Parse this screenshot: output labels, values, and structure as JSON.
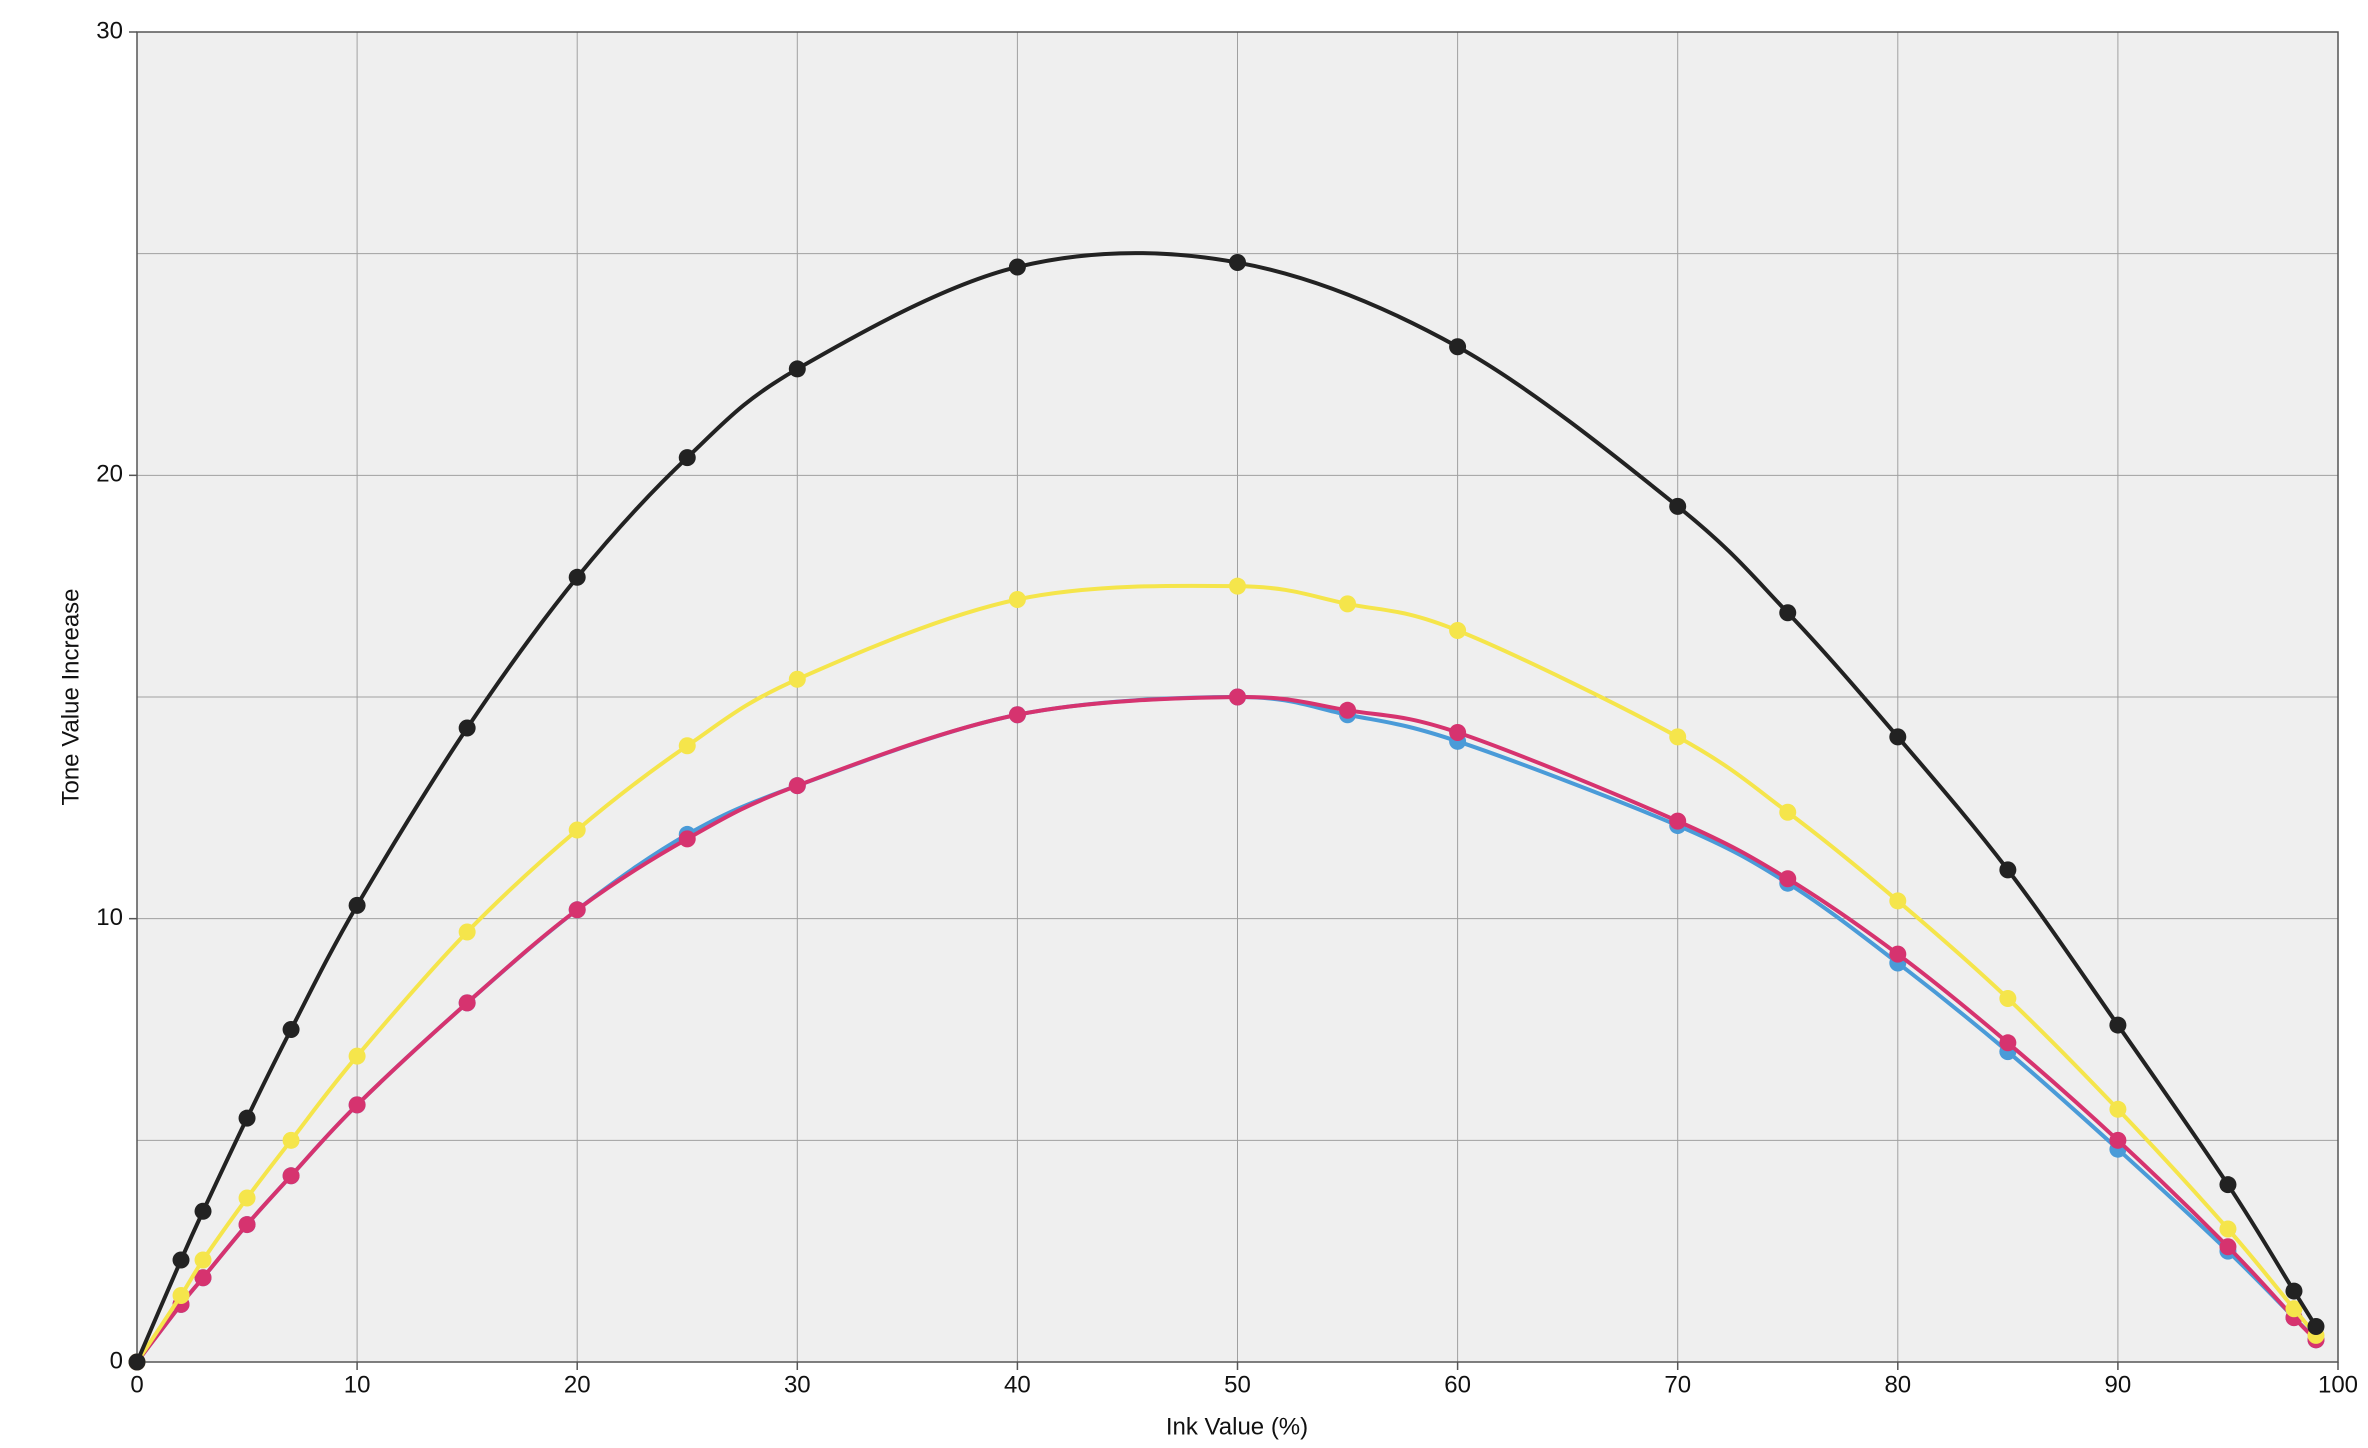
{
  "chart_data": {
    "type": "line",
    "x_label": "Ink Value (%)",
    "y_label": "Tone Value Increase",
    "xlim": [
      0,
      100
    ],
    "xticks": [
      0,
      10,
      20,
      30,
      40,
      50,
      60,
      70,
      80,
      90,
      100
    ],
    "ylim": [
      0,
      30
    ],
    "yticks": [
      0,
      10,
      20,
      30
    ],
    "y_minor_grid": [
      5,
      15,
      25
    ],
    "grid": true,
    "series": [
      {
        "color": "#4a9bd8",
        "x": [
          0,
          2,
          3,
          5,
          7,
          10,
          15,
          20,
          25,
          30,
          40,
          50,
          55,
          60,
          70,
          75,
          80,
          85,
          90,
          95,
          98,
          99
        ],
        "values": [
          0,
          1.3,
          1.9,
          3.1,
          4.2,
          5.8,
          8.1,
          10.2,
          11.9,
          13.0,
          14.6,
          15.0,
          14.6,
          14.0,
          12.1,
          10.8,
          9.0,
          7.0,
          4.8,
          2.5,
          1.0,
          0.5
        ]
      },
      {
        "color": "#d6336f",
        "x": [
          0,
          2,
          3,
          5,
          7,
          10,
          15,
          20,
          25,
          30,
          40,
          50,
          55,
          60,
          70,
          75,
          80,
          85,
          90,
          95,
          98,
          99
        ],
        "values": [
          0,
          1.3,
          1.9,
          3.1,
          4.2,
          5.8,
          8.1,
          10.2,
          11.8,
          13.0,
          14.6,
          15.0,
          14.7,
          14.2,
          12.2,
          10.9,
          9.2,
          7.2,
          5.0,
          2.6,
          1.0,
          0.5
        ]
      },
      {
        "color": "#f5e54b",
        "x": [
          0,
          2,
          3,
          5,
          7,
          10,
          15,
          20,
          25,
          30,
          40,
          50,
          55,
          60,
          70,
          75,
          80,
          85,
          90,
          95,
          98,
          99
        ],
        "values": [
          0,
          1.5,
          2.3,
          3.7,
          5.0,
          6.9,
          9.7,
          12.0,
          13.9,
          15.4,
          17.2,
          17.5,
          17.1,
          16.5,
          14.1,
          12.4,
          10.4,
          8.2,
          5.7,
          3.0,
          1.2,
          0.6
        ]
      },
      {
        "color": "#222222",
        "x": [
          0,
          2,
          3,
          5,
          7,
          10,
          15,
          20,
          25,
          30,
          40,
          50,
          60,
          70,
          75,
          80,
          85,
          90,
          95,
          98,
          99
        ],
        "values": [
          0,
          2.3,
          3.4,
          5.5,
          7.5,
          10.3,
          14.3,
          17.7,
          20.4,
          22.4,
          24.7,
          24.8,
          22.9,
          19.3,
          16.9,
          14.1,
          11.1,
          7.6,
          4.0,
          1.6,
          0.8
        ]
      }
    ]
  }
}
